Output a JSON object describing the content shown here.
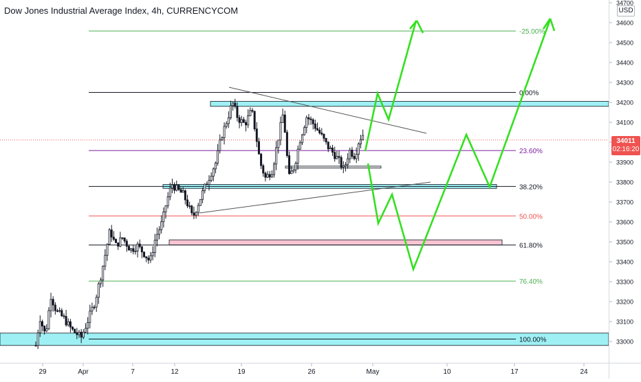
{
  "header": {
    "title": "Dow Jones Industrial Average Index, 4h, CURRENCYCOM"
  },
  "price_axis": {
    "currency": "USD",
    "ticks": [
      "34700",
      "34600",
      "34500",
      "34400",
      "34300",
      "34200",
      "34100",
      "34000",
      "33900",
      "33800",
      "33700",
      "33600",
      "33500",
      "33400",
      "33300",
      "33200",
      "33100",
      "33000"
    ],
    "last_price": "34011",
    "countdown": "02:16:20",
    "last_price_color": "#ef5350"
  },
  "time_axis": {
    "ticks": [
      "29",
      "Apr",
      "7",
      "12",
      "19",
      "26",
      "May",
      "10",
      "17",
      "24"
    ]
  },
  "colors": {
    "bull": "#26a69a",
    "bear": "#ef5350",
    "candle": "#131722",
    "zone_fill": "#9ef0f4",
    "zone_fill_pink": "#f7c4d2",
    "projection": "#33e01f",
    "trendline": "#555555"
  },
  "chart_data": {
    "type": "candlestick",
    "title": "Dow Jones Industrial Average Index, 4h, CURRENCYCOM",
    "y_range": [
      32950,
      34720
    ],
    "x_labels": [
      "29",
      "Apr",
      "7",
      "12",
      "19",
      "26",
      "May",
      "10",
      "17",
      "24"
    ],
    "fibonacci": [
      {
        "label": "-25.00%",
        "price": 34558,
        "color": "#4caf50"
      },
      {
        "label": "0.00%",
        "price": 34250,
        "color": "#131722"
      },
      {
        "label": "23.60%",
        "price": 33958,
        "color": "#7b1fa2"
      },
      {
        "label": "38.20%",
        "price": 33778,
        "color": "#131722"
      },
      {
        "label": "50.00%",
        "price": 33630,
        "color": "#ef5350"
      },
      {
        "label": "61.80%",
        "price": 33484,
        "color": "#131722"
      },
      {
        "label": "76.40%",
        "price": 33303,
        "color": "#4caf50"
      },
      {
        "label": "100.00%",
        "price": 33012,
        "color": "#131722"
      }
    ],
    "last_price": 34011
  }
}
